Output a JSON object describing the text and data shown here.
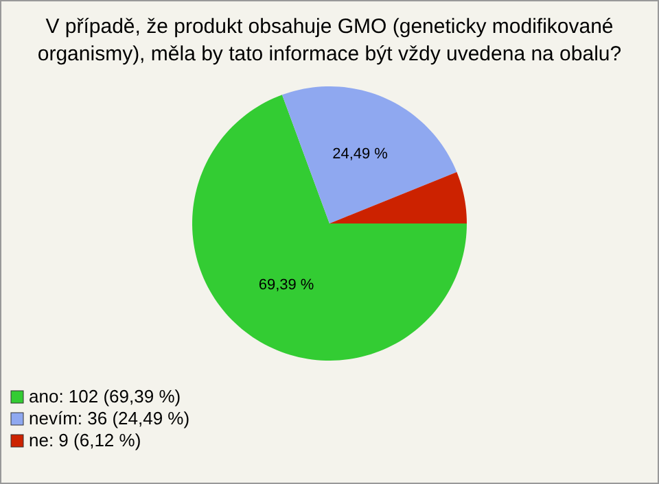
{
  "chart_data": {
    "type": "pie",
    "title": "V případě, že produkt obsahuje GMO (geneticky modifikované organismy), měla by tato informace být vždy uvedena na obalu?",
    "categories": [
      "ano: 102 (69,39 %)",
      "nevím: 36 (24,49 %)",
      "ne: 9 (6,12 %)"
    ],
    "values": [
      69.39,
      24.49,
      6.12
    ],
    "colors": [
      "#33cc33",
      "#8fa8f0",
      "#cc2200"
    ],
    "value_labels": [
      "69,39 %",
      "24,49 %",
      null
    ],
    "legend": "bottom left"
  }
}
